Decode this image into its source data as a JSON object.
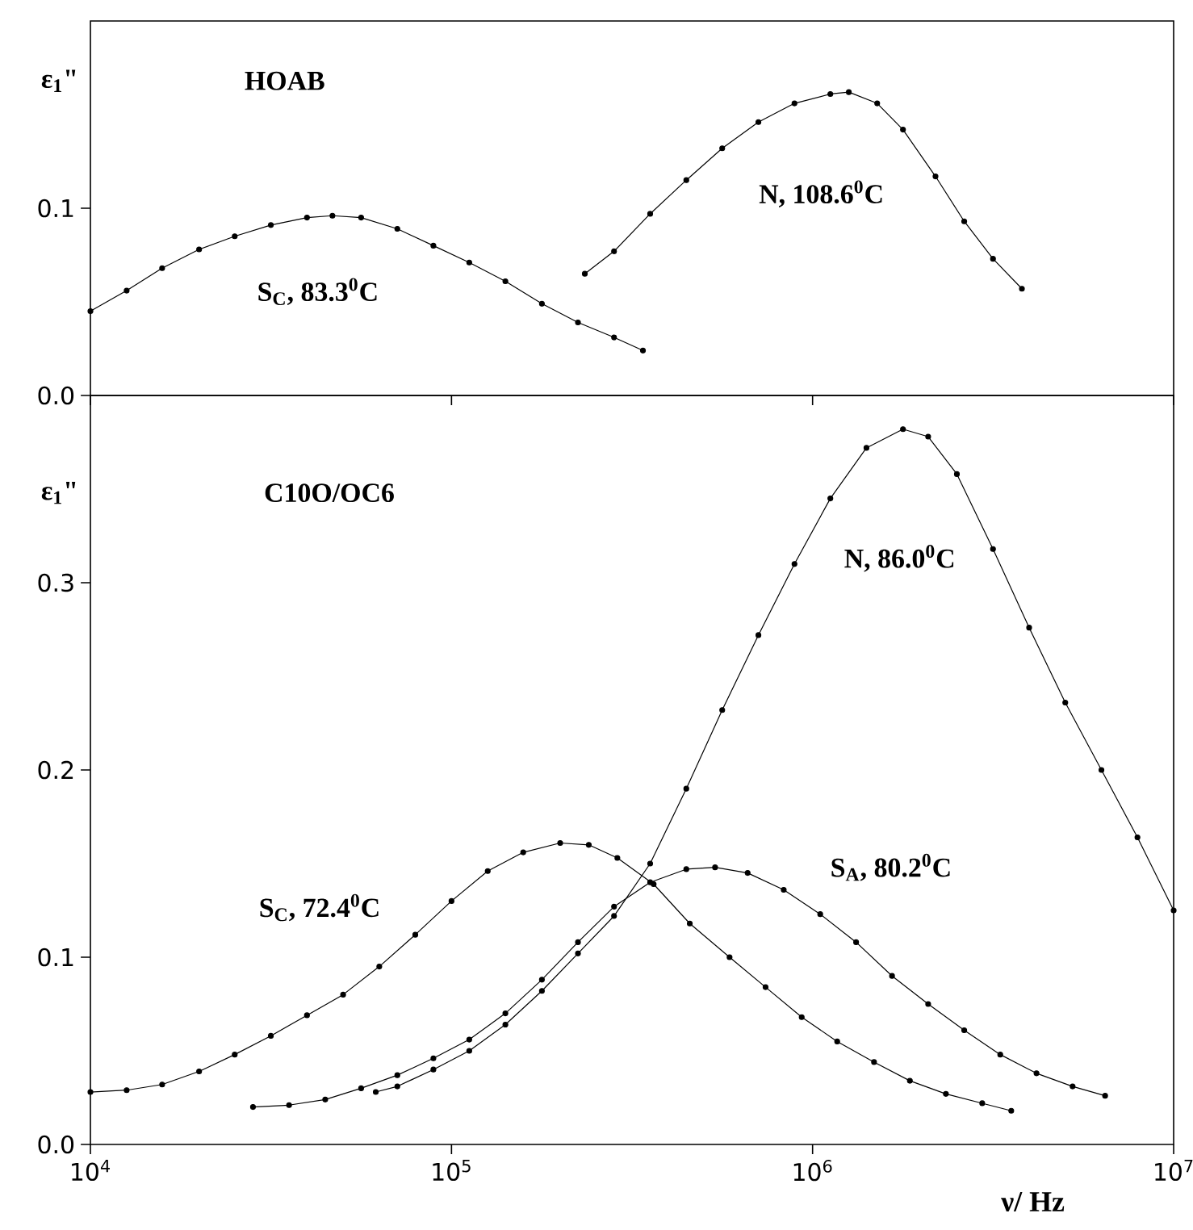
{
  "chart_data": [
    {
      "type": "line",
      "title": "HOAB",
      "ylabel": "ε$_{1}$\"",
      "log": "x",
      "marker": "circle",
      "line_style": "solid",
      "tick_labels": "y",
      "xlim": [
        10000,
        10000000
      ],
      "xticks": [
        10000,
        100000,
        1000000,
        10000000
      ],
      "ylim": [
        0,
        0.2
      ],
      "yticks": [
        {
          "value": 0,
          "label": "0.0"
        },
        {
          "value": 0.1,
          "label": "0.1"
        }
      ],
      "series": [
        {
          "name": "S$_{C}$, 83.3$^{0}$C",
          "color": "#000000",
          "x": [
            10000.0,
            12600.0,
            15800.0,
            20000.0,
            25100.0,
            31600.0,
            39800.0,
            46800.0,
            56200.0,
            70800.0,
            89100.0,
            112000.0,
            141000.0,
            178000.0,
            224000.0,
            282000.0,
            339000.0
          ],
          "values": [
            0.045,
            0.056,
            0.068,
            0.078,
            0.085,
            0.091,
            0.095,
            0.096,
            0.095,
            0.089,
            0.08,
            0.071,
            0.061,
            0.049,
            0.039,
            0.031,
            0.024
          ]
        },
        {
          "name": "N, 108.6$^{0}$C",
          "color": "#000000",
          "x": [
            234000.0,
            282000.0,
            355000.0,
            447000.0,
            562000.0,
            708000.0,
            891000.0,
            1120000.0,
            1260000.0,
            1510000.0,
            1780000.0,
            2190000.0,
            2630000.0,
            3160000.0,
            3800000.0
          ],
          "values": [
            0.065,
            0.077,
            0.097,
            0.115,
            0.132,
            0.146,
            0.156,
            0.161,
            0.162,
            0.156,
            0.142,
            0.117,
            0.093,
            0.073,
            0.057
          ]
        }
      ]
    },
    {
      "type": "line",
      "title": "C10O/OC6",
      "ylabel": "ε$_{1}$\"",
      "xlabel": "ν/ Hz",
      "log": "x",
      "marker": "circle",
      "line_style": "solid",
      "xlim": [
        10000,
        10000000
      ],
      "xticks": [
        {
          "value": 10000,
          "label": "10$^{4}$"
        },
        {
          "value": 100000,
          "label": "10$^{5}$"
        },
        {
          "value": 1000000,
          "label": "10$^{6}$"
        },
        {
          "value": 10000000,
          "label": "10$^{7}$"
        }
      ],
      "ylim": [
        0,
        0.4
      ],
      "yticks": [
        {
          "value": 0,
          "label": "0.0"
        },
        {
          "value": 0.1,
          "label": "0.1"
        },
        {
          "value": 0.2,
          "label": "0.2"
        },
        {
          "value": 0.3,
          "label": "0.3"
        }
      ],
      "series": [
        {
          "name": "N, 86.0$^{0}$C",
          "color": "#000000",
          "x": [
            61700.0,
            70800.0,
            89100.0,
            112000.0,
            141000.0,
            178000.0,
            224000.0,
            282000.0,
            355000.0,
            447000.0,
            562000.0,
            708000.0,
            891000.0,
            1120000.0,
            1410000.0,
            1780000.0,
            2090000.0,
            2510000.0,
            3160000.0,
            3980000.0,
            5010000.0,
            6310000.0,
            7940000.0,
            10000000.0
          ],
          "values": [
            0.028,
            0.031,
            0.04,
            0.05,
            0.064,
            0.082,
            0.102,
            0.122,
            0.15,
            0.19,
            0.232,
            0.272,
            0.31,
            0.345,
            0.372,
            0.382,
            0.378,
            0.358,
            0.318,
            0.276,
            0.236,
            0.2,
            0.164,
            0.125
          ]
        },
        {
          "name": "S$_{C}$, 72.4$^{0}$C",
          "color": "#000000",
          "x": [
            10000.0,
            12600.0,
            15800.0,
            20000.0,
            25100.0,
            31600.0,
            39800.0,
            50100.0,
            63100.0,
            79400.0,
            100000.0,
            126000.0,
            158000.0,
            200000.0,
            240000.0,
            288000.0,
            363000.0,
            457000.0,
            589000.0,
            741000.0,
            933000.0,
            1170000.0,
            1480000.0,
            1860000.0,
            2340000.0,
            2950000.0,
            3550000.0
          ],
          "values": [
            0.028,
            0.029,
            0.032,
            0.039,
            0.048,
            0.058,
            0.069,
            0.08,
            0.095,
            0.112,
            0.13,
            0.146,
            0.156,
            0.161,
            0.16,
            0.153,
            0.139,
            0.118,
            0.1,
            0.084,
            0.068,
            0.055,
            0.044,
            0.034,
            0.027,
            0.022,
            0.018
          ]
        },
        {
          "name": "S$_{A}$, 80.2$^{0}$C",
          "color": "#000000",
          "x": [
            28200.0,
            35500.0,
            44700.0,
            56200.0,
            70800.0,
            89100.0,
            112000.0,
            141000.0,
            178000.0,
            224000.0,
            282000.0,
            355000.0,
            447000.0,
            537000.0,
            661000.0,
            832000.0,
            1050000.0,
            1320000.0,
            1660000.0,
            2090000.0,
            2630000.0,
            3310000.0,
            4170000.0,
            5250000.0,
            6460000.0
          ],
          "values": [
            0.02,
            0.021,
            0.024,
            0.03,
            0.037,
            0.046,
            0.056,
            0.07,
            0.088,
            0.108,
            0.127,
            0.14,
            0.147,
            0.148,
            0.145,
            0.136,
            0.123,
            0.108,
            0.09,
            0.075,
            0.061,
            0.048,
            0.038,
            0.031,
            0.026
          ]
        }
      ]
    }
  ]
}
